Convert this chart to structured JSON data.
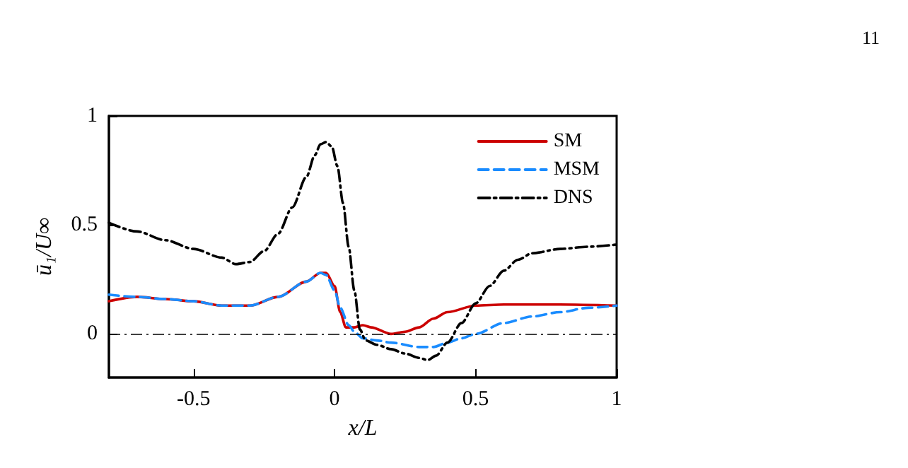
{
  "chart_data": {
    "type": "line",
    "xlabel": "x/L",
    "ylabel": "ū₁/U∞",
    "annotations": [
      "11"
    ],
    "xlim": [
      -0.8,
      1
    ],
    "ylim": [
      -0.2,
      1
    ],
    "xticks": [
      -0.5,
      0,
      0.5,
      1
    ],
    "yticks": [
      0,
      0.5,
      1
    ],
    "grid": false,
    "legend": "top right",
    "marker": "none",
    "ref_lines": [
      {
        "axis": "y",
        "value": 0,
        "color": "#000000",
        "line_style": "dotted"
      }
    ],
    "series": [
      {
        "name": "SM",
        "color": "#cc0000",
        "line_style": "solid",
        "x": [
          -0.8,
          -0.7,
          -0.6,
          -0.5,
          -0.4,
          -0.3,
          -0.2,
          -0.1,
          -0.05,
          -0.03,
          0,
          0.02,
          0.04,
          0.07,
          0.1,
          0.13,
          0.2,
          0.25,
          0.3,
          0.35,
          0.4,
          0.5,
          0.6,
          0.8,
          1
        ],
        "values": [
          0.15,
          0.17,
          0.16,
          0.15,
          0.13,
          0.13,
          0.17,
          0.24,
          0.28,
          0.28,
          0.22,
          0.1,
          0.03,
          0.03,
          0.04,
          0.03,
          0.0,
          0.01,
          0.03,
          0.07,
          0.1,
          0.13,
          0.135,
          0.135,
          0.13
        ]
      },
      {
        "name": "MSM",
        "color": "#1a8cff",
        "line_style": "dashed",
        "x": [
          -0.8,
          -0.7,
          -0.6,
          -0.5,
          -0.4,
          -0.3,
          -0.2,
          -0.1,
          -0.05,
          -0.03,
          0,
          0.02,
          0.05,
          0.07,
          0.1,
          0.15,
          0.2,
          0.3,
          0.35,
          0.4,
          0.45,
          0.5,
          0.6,
          0.7,
          0.8,
          0.9,
          1
        ],
        "values": [
          0.18,
          0.17,
          0.16,
          0.15,
          0.13,
          0.13,
          0.17,
          0.24,
          0.28,
          0.27,
          0.2,
          0.12,
          0.04,
          0.01,
          -0.02,
          -0.03,
          -0.04,
          -0.06,
          -0.06,
          -0.04,
          -0.02,
          0.0,
          0.05,
          0.08,
          0.1,
          0.12,
          0.13
        ]
      },
      {
        "name": "DNS",
        "color": "#000000",
        "line_style": "dotted",
        "x": [
          -0.8,
          -0.7,
          -0.6,
          -0.5,
          -0.4,
          -0.35,
          -0.3,
          -0.25,
          -0.2,
          -0.15,
          -0.1,
          -0.07,
          -0.05,
          -0.03,
          -0.01,
          0.01,
          0.03,
          0.05,
          0.07,
          0.09,
          0.11,
          0.15,
          0.2,
          0.25,
          0.3,
          0.33,
          0.36,
          0.4,
          0.45,
          0.5,
          0.55,
          0.6,
          0.65,
          0.7,
          0.8,
          0.9,
          1
        ],
        "values": [
          0.51,
          0.47,
          0.43,
          0.39,
          0.35,
          0.32,
          0.33,
          0.38,
          0.46,
          0.58,
          0.72,
          0.82,
          0.87,
          0.88,
          0.86,
          0.77,
          0.6,
          0.4,
          0.2,
          0.02,
          -0.03,
          -0.05,
          -0.07,
          -0.09,
          -0.11,
          -0.12,
          -0.1,
          -0.04,
          0.05,
          0.14,
          0.22,
          0.29,
          0.34,
          0.37,
          0.39,
          0.4,
          0.41
        ]
      }
    ]
  }
}
